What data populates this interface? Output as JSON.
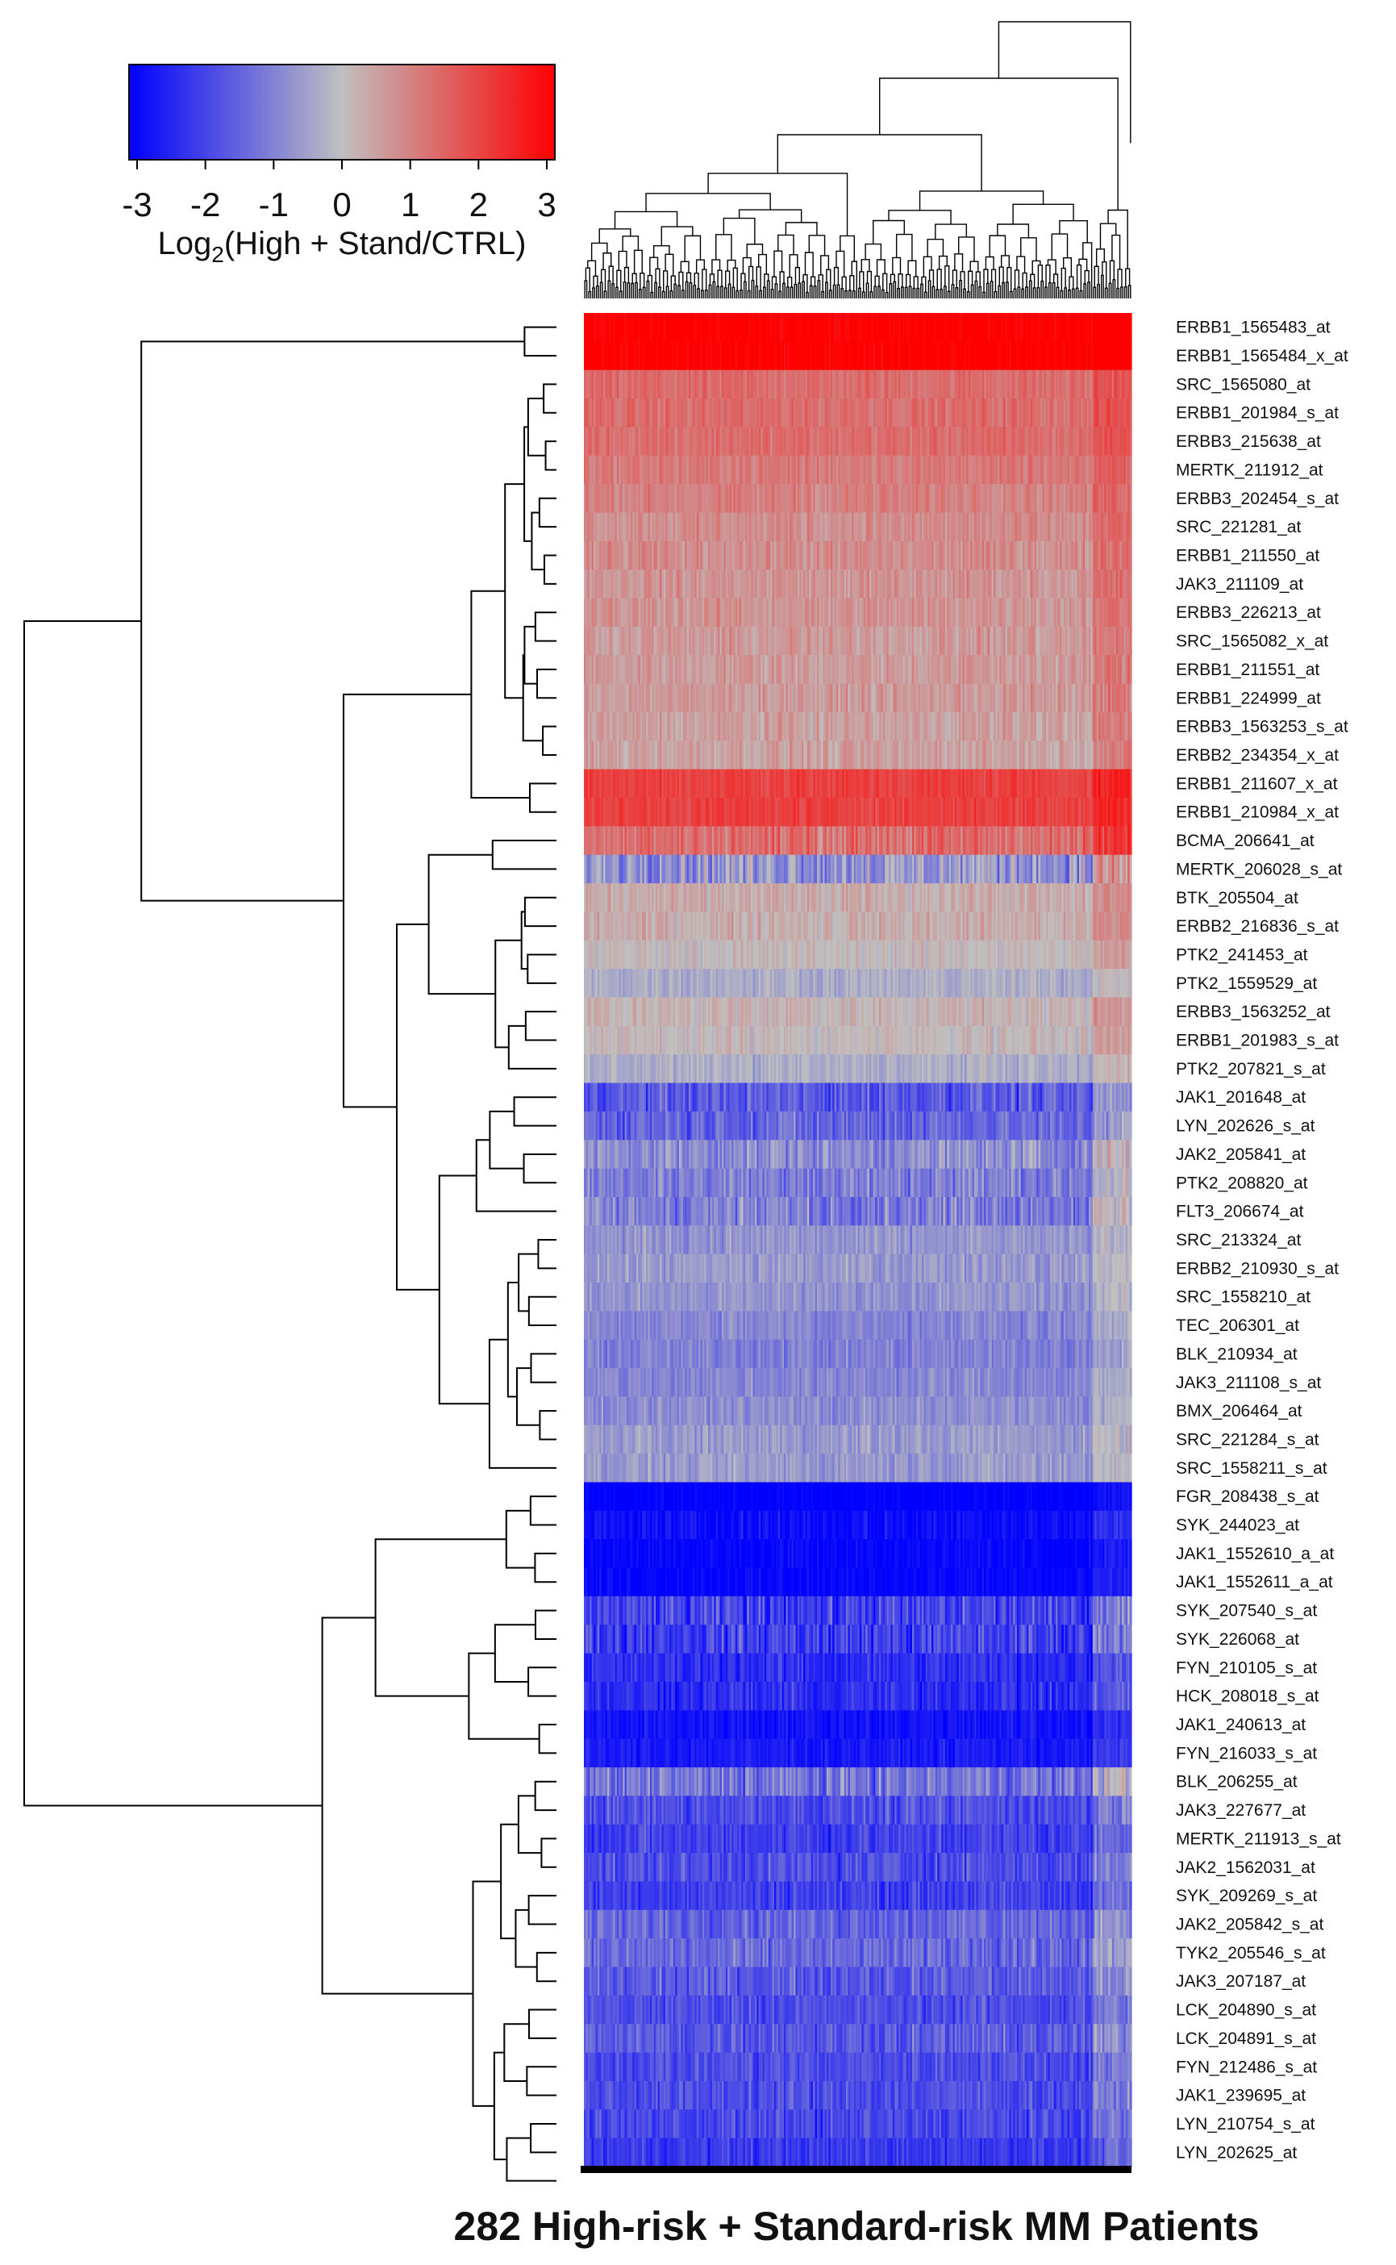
{
  "chart_data": {
    "type": "heatmap",
    "title": "",
    "xlabel": "282 High-risk + Standard-risk MM Patients",
    "n_columns": 282,
    "colorbar": {
      "label_prefix": "Log",
      "label_subscript": "2",
      "label_suffix": "(High + Stand/CTRL)",
      "range": [
        -3,
        3
      ],
      "ticks": [
        "-3",
        "-2",
        "-1",
        "0",
        "1",
        "2",
        "3"
      ],
      "colors": {
        "low": "#0000ff",
        "mid": "#c0c0c0",
        "high": "#ff0000"
      }
    },
    "rows": [
      {
        "label": "ERBB1_1565483_at",
        "mean": 3.0,
        "var": 0.3
      },
      {
        "label": "ERBB1_1565484_x_at",
        "mean": 3.0,
        "var": 0.3
      },
      {
        "label": "SRC_1565080_at",
        "mean": 1.3,
        "var": 0.5
      },
      {
        "label": "ERBB1_201984_s_at",
        "mean": 1.3,
        "var": 0.5
      },
      {
        "label": "ERBB3_215638_at",
        "mean": 1.3,
        "var": 0.5
      },
      {
        "label": "MERTK_211912_at",
        "mean": 1.1,
        "var": 0.5
      },
      {
        "label": "ERBB3_202454_s_at",
        "mean": 1.0,
        "var": 0.5
      },
      {
        "label": "SRC_221281_at",
        "mean": 0.8,
        "var": 0.6
      },
      {
        "label": "ERBB1_211550_at",
        "mean": 0.8,
        "var": 0.6
      },
      {
        "label": "JAK3_211109_at",
        "mean": 0.7,
        "var": 0.6
      },
      {
        "label": "ERBB3_226213_at",
        "mean": 0.7,
        "var": 0.6
      },
      {
        "label": "SRC_1565082_x_at",
        "mean": 0.6,
        "var": 0.6
      },
      {
        "label": "ERBB1_211551_at",
        "mean": 0.6,
        "var": 0.6
      },
      {
        "label": "ERBB1_224999_at",
        "mean": 0.6,
        "var": 0.6
      },
      {
        "label": "ERBB3_1563253_s_at",
        "mean": 0.5,
        "var": 0.6
      },
      {
        "label": "ERBB2_234354_x_at",
        "mean": 0.5,
        "var": 0.6
      },
      {
        "label": "ERBB1_211607_x_at",
        "mean": 2.0,
        "var": 0.5
      },
      {
        "label": "ERBB1_210984_x_at",
        "mean": 2.0,
        "var": 0.5
      },
      {
        "label": "BCMA_206641_at",
        "mean": 1.3,
        "var": 0.9
      },
      {
        "label": "MERTK_206028_s_at",
        "mean": -0.6,
        "var": 1.4
      },
      {
        "label": "BTK_205504_at",
        "mean": 0.3,
        "var": 0.6
      },
      {
        "label": "ERBB2_216836_s_at",
        "mean": 0.3,
        "var": 0.6
      },
      {
        "label": "PTK2_241453_at",
        "mean": 0.1,
        "var": 0.5
      },
      {
        "label": "PTK2_1559529_at",
        "mean": -0.3,
        "var": 0.5
      },
      {
        "label": "ERBB3_1563252_at",
        "mean": 0.2,
        "var": 0.6
      },
      {
        "label": "ERBB1_201983_s_at",
        "mean": 0.1,
        "var": 0.5
      },
      {
        "label": "PTK2_207821_s_at",
        "mean": -0.3,
        "var": 0.5
      },
      {
        "label": "JAK1_201648_at",
        "mean": -1.6,
        "var": 1.0
      },
      {
        "label": "LYN_202626_s_at",
        "mean": -1.4,
        "var": 1.0
      },
      {
        "label": "JAK2_205841_at",
        "mean": -0.8,
        "var": 1.0
      },
      {
        "label": "PTK2_208820_at",
        "mean": -1.0,
        "var": 1.0
      },
      {
        "label": "FLT3_206674_at",
        "mean": -1.0,
        "var": 1.1
      },
      {
        "label": "SRC_213324_at",
        "mean": -0.7,
        "var": 0.6
      },
      {
        "label": "ERBB2_210930_s_at",
        "mean": -0.6,
        "var": 0.6
      },
      {
        "label": "SRC_1558210_at",
        "mean": -0.7,
        "var": 0.6
      },
      {
        "label": "TEC_206301_at",
        "mean": -0.9,
        "var": 0.6
      },
      {
        "label": "BLK_210934_at",
        "mean": -1.0,
        "var": 0.6
      },
      {
        "label": "JAK3_211108_s_at",
        "mean": -0.9,
        "var": 0.6
      },
      {
        "label": "BMX_206464_at",
        "mean": -0.8,
        "var": 0.6
      },
      {
        "label": "SRC_221284_s_at",
        "mean": -0.6,
        "var": 0.6
      },
      {
        "label": "SRC_1558211_s_at",
        "mean": -0.6,
        "var": 0.6
      },
      {
        "label": "FGR_208438_s_at",
        "mean": -3.0,
        "var": 0.3
      },
      {
        "label": "SYK_244023_at",
        "mean": -2.8,
        "var": 0.6
      },
      {
        "label": "JAK1_1552610_a_at",
        "mean": -2.9,
        "var": 0.4
      },
      {
        "label": "JAK1_1552611_a_at",
        "mean": -2.9,
        "var": 0.4
      },
      {
        "label": "SYK_207540_s_at",
        "mean": -2.0,
        "var": 1.2
      },
      {
        "label": "SYK_226068_at",
        "mean": -2.0,
        "var": 1.2
      },
      {
        "label": "FYN_210105_s_at",
        "mean": -2.3,
        "var": 0.8
      },
      {
        "label": "HCK_208018_s_at",
        "mean": -2.3,
        "var": 0.8
      },
      {
        "label": "JAK1_240613_at",
        "mean": -2.7,
        "var": 0.5
      },
      {
        "label": "FYN_216033_s_at",
        "mean": -2.6,
        "var": 0.5
      },
      {
        "label": "BLK_206255_at",
        "mean": -1.2,
        "var": 1.2
      },
      {
        "label": "JAK3_227677_at",
        "mean": -1.8,
        "var": 0.9
      },
      {
        "label": "MERTK_211913_s_at",
        "mean": -2.0,
        "var": 0.8
      },
      {
        "label": "JAK2_1562031_at",
        "mean": -1.8,
        "var": 0.9
      },
      {
        "label": "SYK_209269_s_at",
        "mean": -2.0,
        "var": 0.8
      },
      {
        "label": "JAK2_205842_s_at",
        "mean": -1.4,
        "var": 0.9
      },
      {
        "label": "TYK2_205546_s_at",
        "mean": -1.4,
        "var": 0.9
      },
      {
        "label": "JAK3_207187_at",
        "mean": -1.6,
        "var": 0.9
      },
      {
        "label": "LCK_204890_s_at",
        "mean": -1.8,
        "var": 0.8
      },
      {
        "label": "LCK_204891_s_at",
        "mean": -1.6,
        "var": 0.9
      },
      {
        "label": "FYN_212486_s_at",
        "mean": -1.8,
        "var": 0.8
      },
      {
        "label": "JAK1_239695_at",
        "mean": -1.8,
        "var": 0.8
      },
      {
        "label": "LYN_210754_s_at",
        "mean": -1.9,
        "var": 0.8
      },
      {
        "label": "LYN_202625_at",
        "mean": -2.1,
        "var": 0.7
      }
    ]
  }
}
